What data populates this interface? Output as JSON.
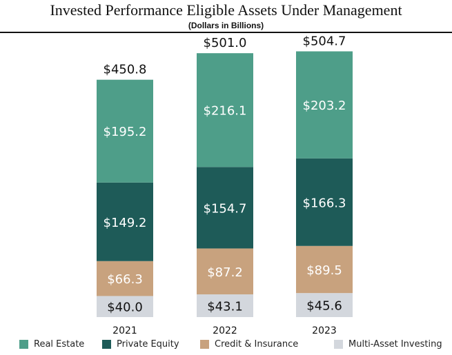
{
  "chart_data": {
    "type": "bar",
    "stacked": true,
    "title": "Invested Performance Eligible Assets Under Management",
    "subtitle": "(Dollars in Billions)",
    "categories": [
      "2021",
      "2022",
      "2023"
    ],
    "totals": [
      450.8,
      501.0,
      504.7
    ],
    "total_labels": [
      "$450.8",
      "$501.0",
      "$504.7"
    ],
    "series": [
      {
        "name": "Multi-Asset Investing",
        "color": "#D3D7DD",
        "text_color": "#111111",
        "values": [
          40.0,
          43.1,
          45.6
        ],
        "labels": [
          "$40.0",
          "$43.1",
          "$45.6"
        ]
      },
      {
        "name": "Credit & Insurance",
        "color": "#C8A27E",
        "text_color": "#FFFFFF",
        "values": [
          66.3,
          87.2,
          89.5
        ],
        "labels": [
          "$66.3",
          "$87.2",
          "$89.5"
        ]
      },
      {
        "name": "Private Equity",
        "color": "#1E5B58",
        "text_color": "#FFFFFF",
        "values": [
          149.2,
          154.7,
          166.3
        ],
        "labels": [
          "$149.2",
          "$154.7",
          "$166.3"
        ]
      },
      {
        "name": "Real Estate",
        "color": "#4E9E89",
        "text_color": "#FFFFFF",
        "values": [
          195.2,
          216.1,
          203.2
        ],
        "labels": [
          "$195.2",
          "$216.1",
          "$203.2"
        ]
      }
    ],
    "legend": [
      "Real Estate",
      "Private Equity",
      "Credit & Insurance",
      "Multi-Asset Investing"
    ],
    "legend_placement": "bottom",
    "grid": false
  }
}
